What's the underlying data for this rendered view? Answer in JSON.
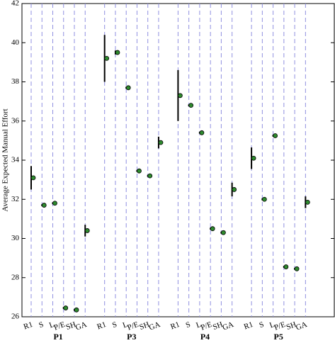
{
  "chart_data": {
    "type": "errorbar",
    "y_label": "Average Expected Manual Effort",
    "ylim": [
      26,
      42
    ],
    "yticks": [
      26,
      28,
      30,
      32,
      34,
      36,
      38,
      40,
      42
    ],
    "marker_color": "#2e8b2e",
    "errorbar_color": "#000000",
    "guide_color": "#8f8fe0",
    "groups": [
      {
        "name": "P1",
        "categories": [
          "R1",
          "S",
          "L",
          "P/E",
          "SH",
          "GA"
        ],
        "values": [
          33.1,
          31.7,
          31.8,
          26.45,
          26.35,
          30.4
        ],
        "errors": [
          0.6,
          0.05,
          0.05,
          0.05,
          0.05,
          0.3
        ]
      },
      {
        "name": "P3",
        "categories": [
          "R1",
          "S",
          "L",
          "P/E",
          "SH",
          "GA"
        ],
        "values": [
          39.2,
          39.5,
          37.7,
          33.45,
          33.2,
          34.9
        ],
        "errors": [
          1.2,
          0.1,
          0.05,
          0.05,
          0.05,
          0.3
        ]
      },
      {
        "name": "P4",
        "categories": [
          "R1",
          "S",
          "L",
          "P/E",
          "SH",
          "GA"
        ],
        "values": [
          37.3,
          36.8,
          35.4,
          30.5,
          30.3,
          32.5
        ],
        "errors": [
          1.3,
          0.05,
          0.05,
          0.05,
          0.05,
          0.35
        ]
      },
      {
        "name": "P5",
        "categories": [
          "R1",
          "S",
          "L",
          "P/E",
          "SH",
          "GA"
        ],
        "values": [
          34.1,
          32.0,
          35.25,
          28.55,
          28.45,
          31.85
        ],
        "errors": [
          0.55,
          0.05,
          0.05,
          0.05,
          0.05,
          0.3
        ]
      }
    ]
  }
}
